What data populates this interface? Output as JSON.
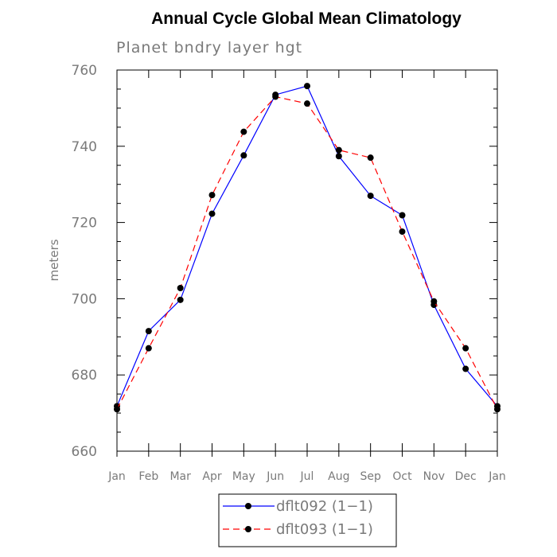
{
  "chart_data": {
    "type": "line",
    "title": "Annual Cycle Global Mean Climatology",
    "subtitle": "Planet bndry layer hgt",
    "xlabel": "",
    "ylabel": "meters",
    "categories": [
      "Jan",
      "Feb",
      "Mar",
      "Apr",
      "May",
      "Jun",
      "Jul",
      "Aug",
      "Sep",
      "Oct",
      "Nov",
      "Dec",
      "Jan"
    ],
    "ylim": [
      660,
      760
    ],
    "yticks": [
      "660",
      "680",
      "700",
      "720",
      "740",
      "760"
    ],
    "grid": false,
    "legend_position": "bottom-center",
    "series": [
      {
        "name": "dflt092 (1−1)",
        "color": "#0000ff",
        "line_style": "solid",
        "marker": "filled-circle",
        "values": [
          671.8,
          691.5,
          699.7,
          722.3,
          737.6,
          753.5,
          755.8,
          737.4,
          727.0,
          721.9,
          698.4,
          681.6,
          671.8
        ]
      },
      {
        "name": "dflt093 (1−1)",
        "color": "#ff0000",
        "line_style": "dashed",
        "marker": "filled-circle",
        "values": [
          671.0,
          687.0,
          702.8,
          727.2,
          743.8,
          753.0,
          751.2,
          739.0,
          737.0,
          717.6,
          699.3,
          687.0,
          671.0
        ]
      }
    ]
  }
}
